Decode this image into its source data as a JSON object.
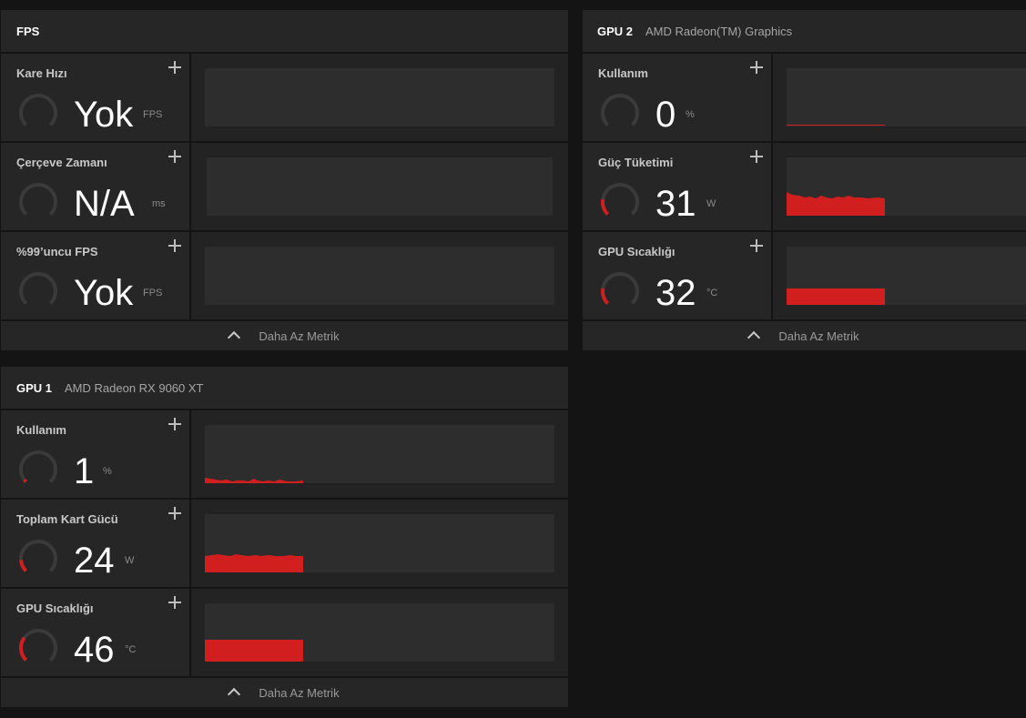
{
  "fps_panel": {
    "title": "FPS",
    "subtitle": "",
    "metrics": [
      {
        "label": "Kare Hızı",
        "value": "Yok",
        "unit": "FPS",
        "gauge_fraction": 0
      },
      {
        "label": "Çerçeve Zamanı",
        "value": "N/A",
        "unit": "ms",
        "gauge_fraction": 0
      },
      {
        "label": "%99’uncu FPS",
        "value": "Yok",
        "unit": "FPS",
        "gauge_fraction": 0
      }
    ],
    "footer_label": "Daha Az Metrik"
  },
  "gpu2_panel": {
    "title": "GPU 2",
    "subtitle": "AMD Radeon(TM) Graphics",
    "metrics": [
      {
        "label": "Kullanım",
        "value": "0",
        "unit": "%",
        "gauge_fraction": 0
      },
      {
        "label": "Güç Tüketimi",
        "value": "31",
        "unit": "W",
        "gauge_fraction": 0.2
      },
      {
        "label": "GPU Sıcaklığı",
        "value": "32",
        "unit": "°C",
        "gauge_fraction": 0.2
      }
    ],
    "footer_label": "Daha Az Metrik"
  },
  "gpu1_panel": {
    "title": "GPU 1",
    "subtitle": "AMD Radeon RX 9060 XT",
    "metrics": [
      {
        "label": "Kullanım",
        "value": "1",
        "unit": "%",
        "gauge_fraction": 0.03
      },
      {
        "label": "Toplam Kart Gücü",
        "value": "24",
        "unit": "W",
        "gauge_fraction": 0.15
      },
      {
        "label": "GPU Sıcaklığı",
        "value": "46",
        "unit": "°C",
        "gauge_fraction": 0.3
      }
    ],
    "footer_label": "Daha Az Metrik"
  },
  "colors": {
    "accent": "#d11f1f",
    "gauge_track": "#3a3a3a"
  }
}
